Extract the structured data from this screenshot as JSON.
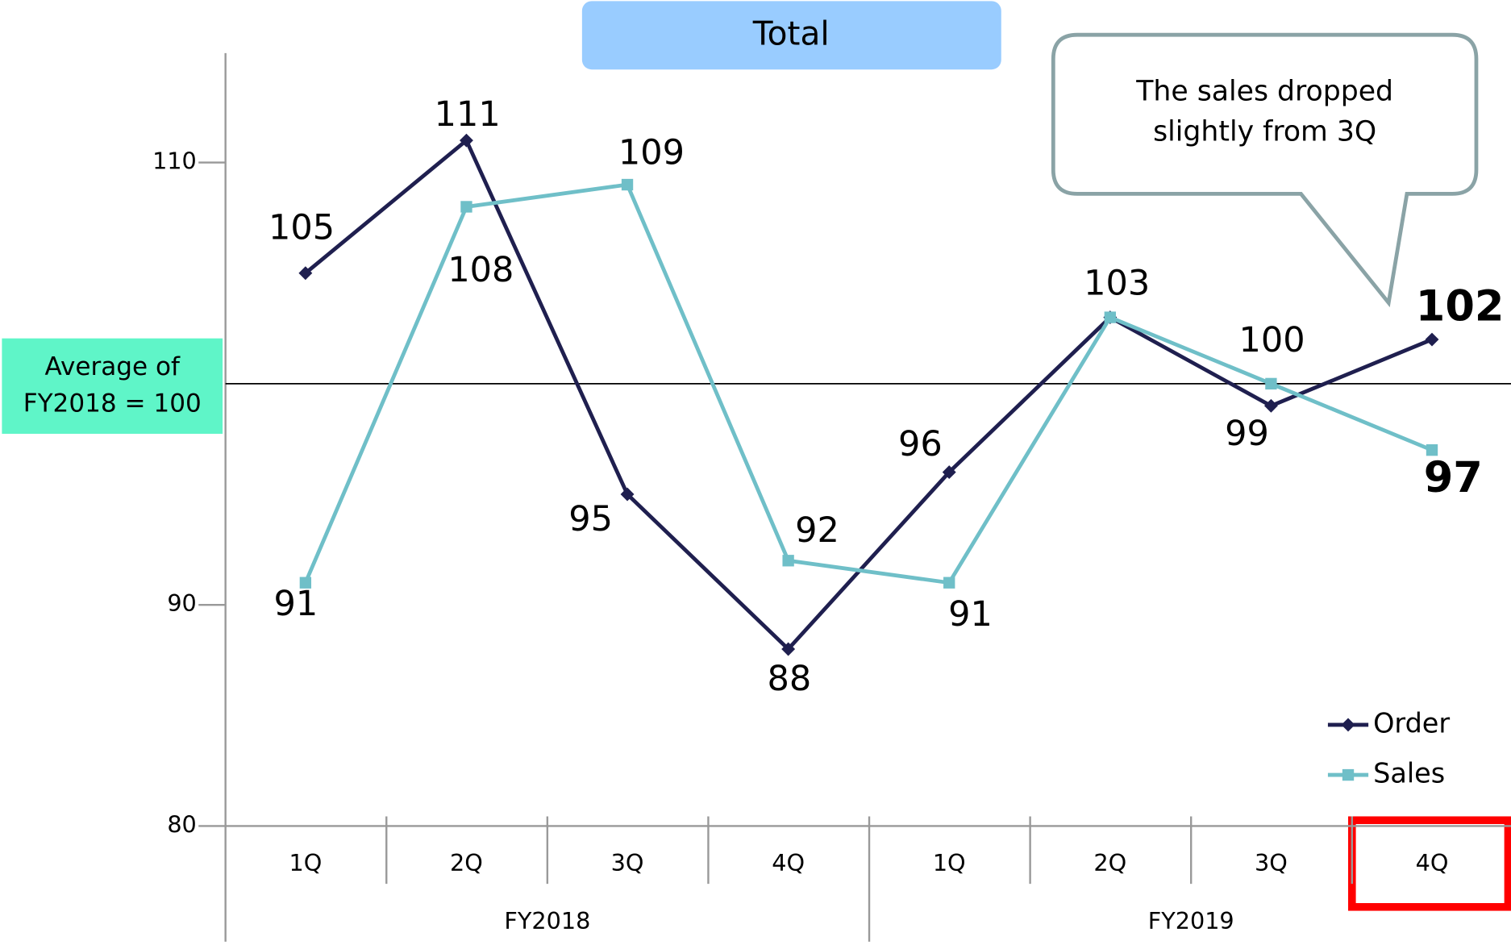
{
  "chart_data": {
    "type": "line",
    "title": "Total",
    "categories": [
      "1Q",
      "2Q",
      "3Q",
      "4Q",
      "1Q",
      "2Q",
      "3Q",
      "4Q"
    ],
    "groups": [
      "FY2018",
      "FY2019"
    ],
    "series": [
      {
        "name": "Order",
        "color": "#1f1f4f",
        "values": [
          105,
          111,
          95,
          88,
          96,
          103,
          99,
          102
        ]
      },
      {
        "name": "Sales",
        "color": "#6fbfc8",
        "values": [
          91,
          108,
          109,
          92,
          91,
          103,
          100,
          97
        ]
      }
    ],
    "ylim": [
      80,
      115
    ],
    "yticks": [
      80,
      90,
      110
    ],
    "reference_line": {
      "value": 100,
      "label": "Average of FY2018 = 100"
    },
    "annotation": "The sales dropped slightly from 3Q",
    "legend": "lower right"
  }
}
